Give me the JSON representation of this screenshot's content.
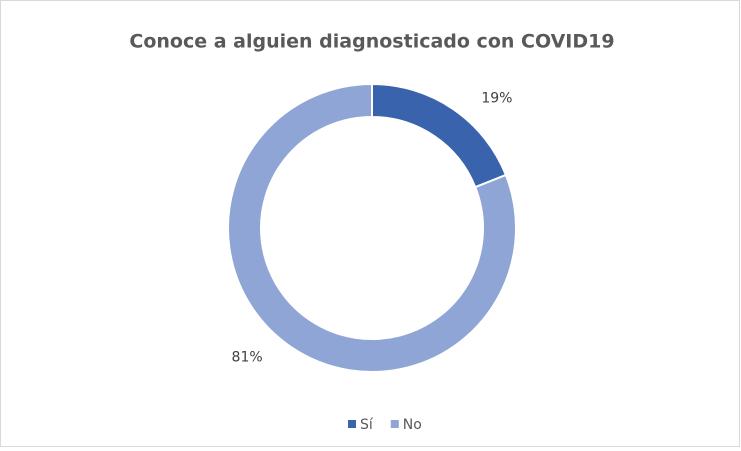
{
  "chart_data": {
    "type": "donut",
    "title": "Conoce a alguien diagnosticado con COVID19",
    "categories": [
      "Sí",
      "No"
    ],
    "values": [
      19,
      81
    ],
    "value_labels": [
      "19%",
      "81%"
    ],
    "colors": [
      "#3a63ad",
      "#8fa5d6"
    ],
    "legend": "bottom"
  }
}
